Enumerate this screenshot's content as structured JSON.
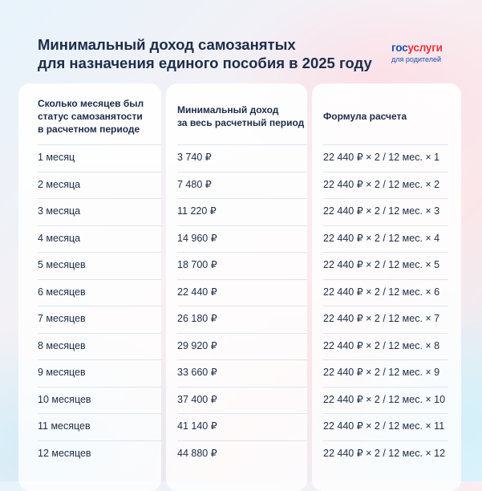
{
  "title": {
    "line1": "Минимальный доход самозанятых",
    "line2": "для назначения единого пособия в 2025 году"
  },
  "logo": {
    "main_part1": "гос",
    "main_part2": "услуги",
    "sub": "для родителей"
  },
  "headers": {
    "col1": [
      "Сколько месяцев был",
      "статус самозанятости",
      "в расчетном периоде"
    ],
    "col2": [
      "Минимальный доход",
      "за весь расчетный период"
    ],
    "col3": [
      "Формула расчета"
    ]
  },
  "rows": [
    {
      "months": "1 месяц",
      "income": "3 740 ₽",
      "formula": "22 440 ₽ × 2 / 12 мес. × 1"
    },
    {
      "months": "2 месяца",
      "income": "7 480 ₽",
      "formula": "22 440 ₽ × 2 / 12 мес. × 2"
    },
    {
      "months": "3 месяца",
      "income": "11 220 ₽",
      "formula": "22 440 ₽ × 2 / 12 мес. × 3"
    },
    {
      "months": "4 месяца",
      "income": "14 960 ₽",
      "formula": "22 440 ₽ × 2 / 12 мес. × 4"
    },
    {
      "months": "5 месяцев",
      "income": "18 700 ₽",
      "formula": "22 440 ₽ × 2 / 12 мес. × 5"
    },
    {
      "months": "6 месяцев",
      "income": "22 440 ₽",
      "formula": "22 440 ₽ × 2 / 12 мес. × 6"
    },
    {
      "months": "7 месяцев",
      "income": "26 180 ₽",
      "formula": "22 440 ₽ × 2 / 12 мес. × 7"
    },
    {
      "months": "8 месяцев",
      "income": "29 920 ₽",
      "formula": "22 440 ₽ × 2 / 12 мес. × 8"
    },
    {
      "months": "9 месяцев",
      "income": "33 660 ₽",
      "formula": "22 440 ₽ × 2 / 12 мес. × 9"
    },
    {
      "months": "10 месяцев",
      "income": "37 400 ₽",
      "formula": "22 440 ₽ × 2 / 12 мес. × 10"
    },
    {
      "months": "11 месяцев",
      "income": "41 140 ₽",
      "formula": "22 440 ₽ × 2 / 12 мес. × 11"
    },
    {
      "months": "12 месяцев",
      "income": "44 880 ₽",
      "formula": "22 440 ₽ × 2 / 12 мес. × 12"
    }
  ]
}
